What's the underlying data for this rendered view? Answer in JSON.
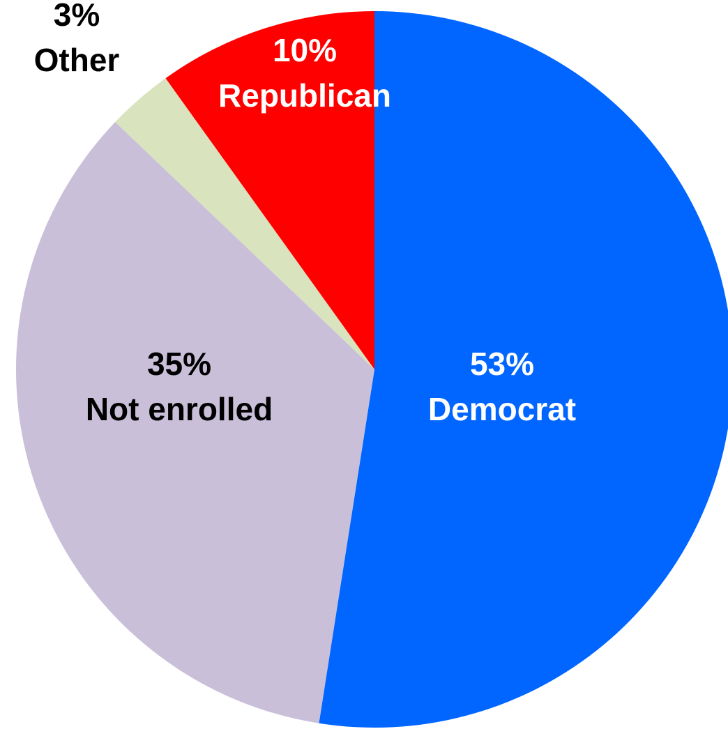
{
  "chart_data": {
    "type": "pie",
    "title": "",
    "start_angle_deg": 0,
    "direction": "clockwise",
    "slices": [
      {
        "label": "Democrat",
        "percent_label": "53%",
        "value": 53,
        "color": "#0066FF",
        "label_color": "#FFFFFF"
      },
      {
        "label": "Not enrolled",
        "percent_label": "35%",
        "value": 35,
        "color": "#C9BFD9",
        "label_color": "#000000"
      },
      {
        "label": "Other",
        "percent_label": "3%",
        "value": 3,
        "color": "#D9E3BE",
        "label_color": "#000000"
      },
      {
        "label": "Republican",
        "percent_label": "10%",
        "value": 10,
        "color": "#FF0000",
        "label_color": "#FFFFFF"
      }
    ]
  }
}
